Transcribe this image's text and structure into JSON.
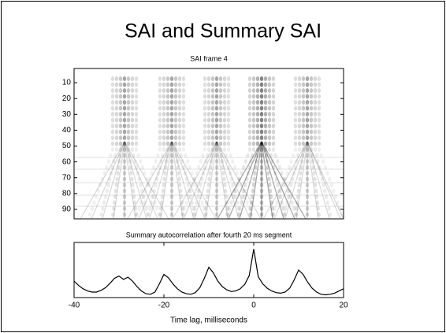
{
  "title": "SAI and Summary SAI",
  "chart_data": [
    {
      "type": "image",
      "title": "SAI frame 4",
      "ylim": [
        1,
        96
      ],
      "yticks": [
        10,
        20,
        30,
        40,
        50,
        60,
        70,
        80,
        90
      ],
      "inverted_y": true
    },
    {
      "type": "line",
      "title": "Summary autocorrelation after fourth 20 ms segment",
      "xlabel": "Time lag, milliseconds",
      "xlim": [
        -40,
        20
      ],
      "xticks": [
        -40,
        -20,
        0,
        20
      ],
      "ylim": [
        0,
        1
      ],
      "color": "#000000",
      "x": [
        -40,
        -39,
        -38,
        -37,
        -36,
        -35,
        -34,
        -33,
        -32,
        -31,
        -30,
        -29,
        -28,
        -27,
        -26,
        -25,
        -24,
        -23,
        -22,
        -21,
        -20,
        -19,
        -18,
        -17,
        -16,
        -15,
        -14,
        -13,
        -12,
        -11,
        -10,
        -9,
        -8,
        -7,
        -6,
        -5,
        -4,
        -3,
        -2,
        -1,
        0,
        1,
        2,
        3,
        4,
        5,
        6,
        7,
        8,
        9,
        10,
        11,
        12,
        13,
        14,
        15,
        16,
        17,
        18,
        19,
        20
      ],
      "values": [
        0.3,
        0.22,
        0.16,
        0.12,
        0.1,
        0.1,
        0.13,
        0.18,
        0.26,
        0.35,
        0.39,
        0.33,
        0.37,
        0.3,
        0.2,
        0.12,
        0.07,
        0.06,
        0.1,
        0.25,
        0.42,
        0.36,
        0.25,
        0.16,
        0.1,
        0.07,
        0.06,
        0.09,
        0.18,
        0.35,
        0.55,
        0.45,
        0.3,
        0.2,
        0.14,
        0.11,
        0.12,
        0.16,
        0.24,
        0.4,
        0.88,
        0.38,
        0.25,
        0.17,
        0.12,
        0.09,
        0.08,
        0.1,
        0.17,
        0.32,
        0.5,
        0.42,
        0.28,
        0.17,
        0.1,
        0.06,
        0.05,
        0.06,
        0.08,
        0.12,
        0.16
      ]
    }
  ]
}
